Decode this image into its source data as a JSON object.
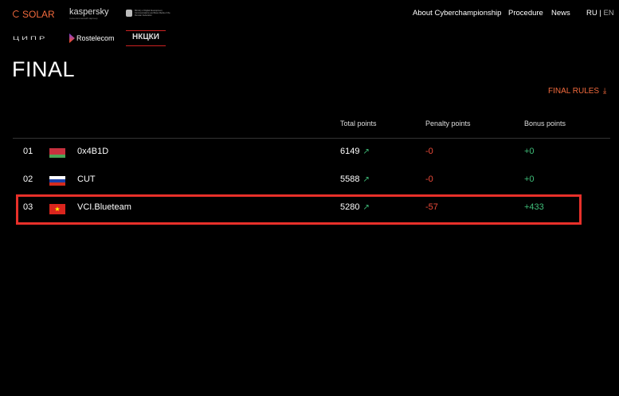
{
  "logos": {
    "solar": "SOLAR",
    "kaspersky": "kaspersky",
    "kaspersky_sub": "технологический партнер",
    "ministry": "Ministry of Digital Development, Communications and Mass Media of the Russian Federation",
    "cipr": "ЦИПР",
    "rostelecom": "Rostelecom",
    "nkcki": "НКЦКИ"
  },
  "nav": {
    "about": "About Cyberchampionship",
    "procedure": "Procedure",
    "news": "News",
    "ru": "RU",
    "sep": "|",
    "en": "EN"
  },
  "page_title": "FINAL",
  "rules_link": "FINAL RULES",
  "table": {
    "headers": {
      "total": "Total points",
      "penalty": "Penalty points",
      "bonus": "Bonus points"
    },
    "rows": [
      {
        "rank": "01",
        "country": "Belarus",
        "team": "0x4B1D",
        "total": "6149",
        "penalty": "-0",
        "bonus": "+0"
      },
      {
        "rank": "02",
        "country": "Russia",
        "team": "CUT",
        "total": "5588",
        "penalty": "-0",
        "bonus": "+0"
      },
      {
        "rank": "03",
        "country": "Vietnam",
        "team": "VCI.Blueteam",
        "total": "5280",
        "penalty": "-57",
        "bonus": "+433"
      }
    ]
  },
  "colors": {
    "accent": "#f26a3d",
    "highlight": "#e8302a",
    "penalty": "#ef4b3a",
    "bonus": "#3fbf7a"
  }
}
